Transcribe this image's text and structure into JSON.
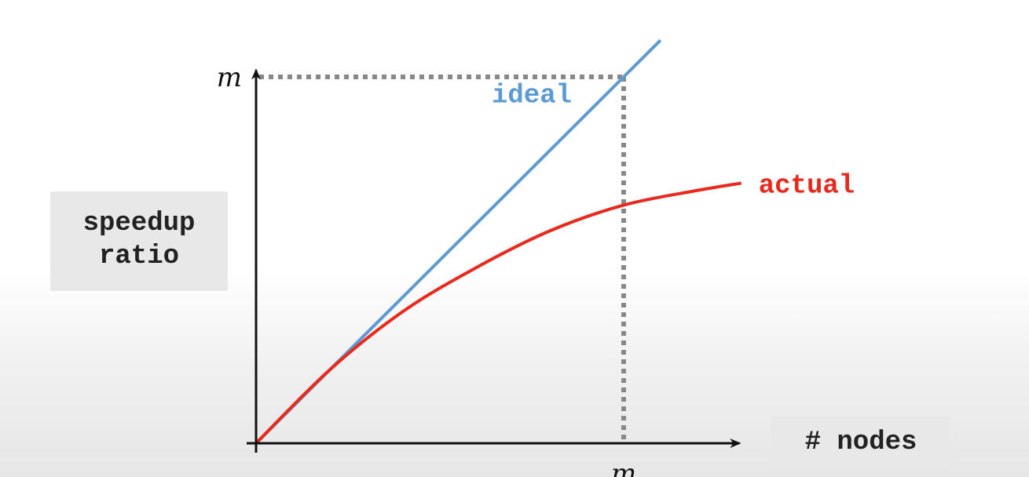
{
  "chart_data": {
    "type": "line",
    "xlabel": "# nodes",
    "ylabel": [
      "speedup",
      "ratio"
    ],
    "x_tick_label": "m",
    "y_tick_label": "m",
    "xlim": [
      0,
      1.3
    ],
    "ylim": [
      0,
      1.04
    ],
    "grid": false,
    "series": [
      {
        "name": "ideal",
        "color": "#5b9bd5",
        "x": [
          0,
          1.0,
          1.1
        ],
        "y": [
          0,
          1.0,
          1.1
        ]
      },
      {
        "name": "actual",
        "color": "#e8291c",
        "x": [
          0,
          0.2,
          0.4,
          0.6,
          0.8,
          1.0,
          1.2,
          1.32
        ],
        "y": [
          0,
          0.2,
          0.36,
          0.48,
          0.58,
          0.65,
          0.69,
          0.71
        ]
      }
    ],
    "reference_lines": {
      "style": "dotted",
      "color": "#888888",
      "x": 1.0,
      "y": 1.0
    }
  }
}
